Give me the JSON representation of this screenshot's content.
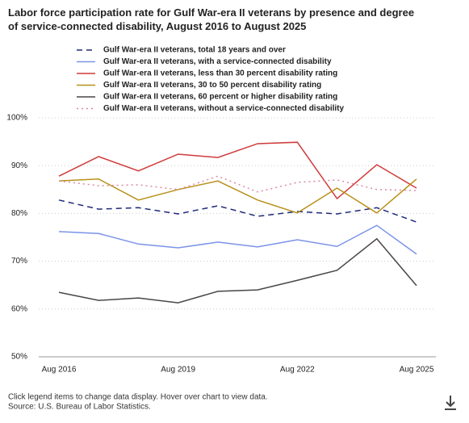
{
  "chart_data": {
    "type": "line",
    "title": "Labor force participation rate for Gulf War-era II veterans by presence and degree of service-connected disability, August 2016 to August 2025",
    "categories": [
      "Aug 2016",
      null,
      null,
      "Aug 2019",
      null,
      null,
      "Aug 2022",
      null,
      null,
      "Aug 2025"
    ],
    "series": [
      {
        "name": "Gulf War-era II veterans, total 18 years and over",
        "color": "#1f2a7a",
        "dash": "dashed",
        "values": [
          82.8,
          80.9,
          81.2,
          79.9,
          81.6,
          79.4,
          80.4,
          79.9,
          81.2,
          78.2
        ]
      },
      {
        "name": "Gulf War-era II veterans, with a service-connected disability",
        "color": "#7b93e8",
        "dash": "solid",
        "values": [
          76.2,
          75.8,
          73.6,
          72.8,
          74.0,
          73.0,
          74.5,
          73.1,
          77.5,
          71.5
        ]
      },
      {
        "name": "Gulf War-era II veterans, less than 30 percent disability rating",
        "color": "#d03a3a",
        "dash": "solid",
        "values": [
          87.8,
          91.9,
          88.9,
          92.4,
          91.7,
          94.6,
          94.9,
          83.1,
          90.2,
          85.3
        ]
      },
      {
        "name": "Gulf War-era II veterans, 30 to 50 percent disability rating",
        "color": "#b8901a",
        "dash": "solid",
        "values": [
          86.8,
          87.2,
          82.8,
          85.0,
          86.8,
          82.8,
          80.1,
          85.3,
          80.1,
          87.2
        ]
      },
      {
        "name": "Gulf War-era II veterans, 60 percent or higher disability rating",
        "color": "#4a4548",
        "dash": "solid",
        "values": [
          63.5,
          61.8,
          62.3,
          61.3,
          63.7,
          64.0,
          66.0,
          68.1,
          74.7,
          64.9
        ]
      },
      {
        "name": "Gulf War-era II veterans, without a service-connected disability",
        "color": "#d98aa0",
        "dash": "dotted",
        "values": [
          86.8,
          85.8,
          86.0,
          85.0,
          87.8,
          84.5,
          86.5,
          87.0,
          85.0,
          84.8
        ]
      }
    ],
    "ylim": [
      50,
      100
    ],
    "yticks": [
      {
        "value": 50,
        "label": "50%"
      },
      {
        "value": 60,
        "label": "60%"
      },
      {
        "value": 70,
        "label": "70%"
      },
      {
        "value": 80,
        "label": "80%"
      },
      {
        "value": 90,
        "label": "90%"
      },
      {
        "value": 100,
        "label": "100%"
      }
    ],
    "grid": true,
    "notes": [
      "Click legend items to change data display. Hover over chart to view data.",
      "Source: U.S. Bureau of Labor Statistics."
    ]
  }
}
